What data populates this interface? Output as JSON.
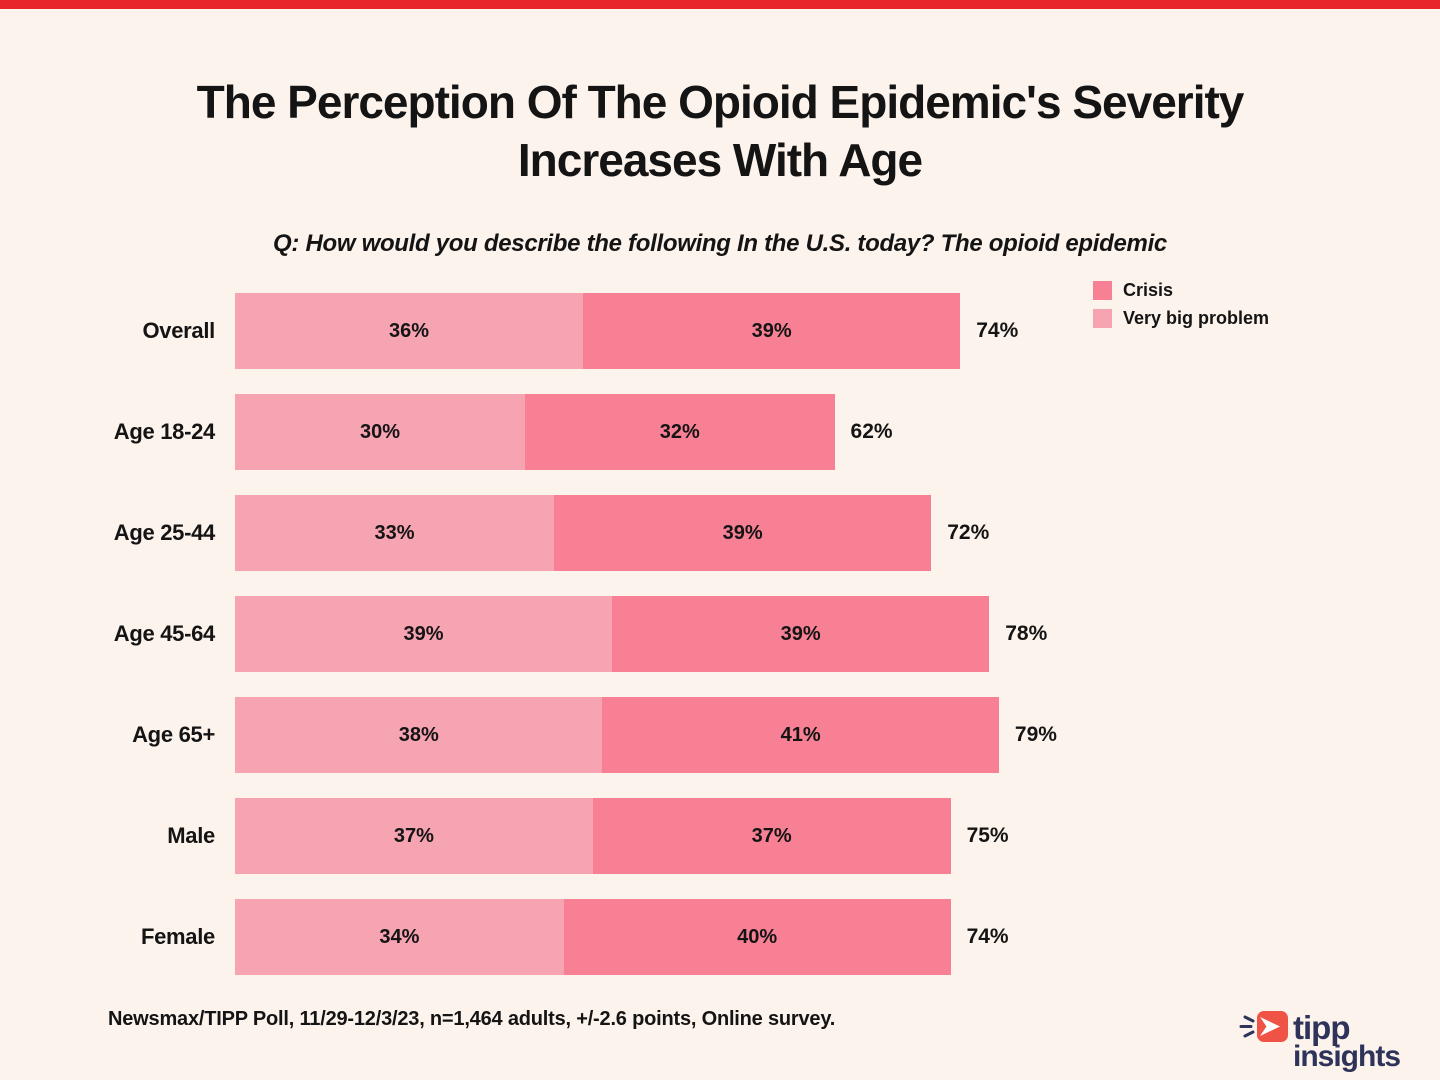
{
  "page": {
    "background": "#FDF3ED",
    "top_bar_color": "#E7252B",
    "text_color": "#141414"
  },
  "header": {
    "title": "The Perception Of The Opioid Epidemic's Severity Increases With Age",
    "subtitle": "Q: How would you describe the following In the U.S. today? The opioid epidemic"
  },
  "chart_data": {
    "type": "bar",
    "orientation": "horizontal",
    "stacked": true,
    "value_suffix": "%",
    "xlim": [
      0,
      100
    ],
    "grid": false,
    "categories": [
      "Overall",
      "Age 18-24",
      "Age 25-44",
      "Age 45-64",
      "Age 65+",
      "Male",
      "Female"
    ],
    "series": [
      {
        "name": "Very big problem",
        "color": "#F6A3B2",
        "values": [
          36,
          30,
          33,
          39,
          38,
          37,
          34
        ]
      },
      {
        "name": "Crisis",
        "color": "#F88094",
        "values": [
          39,
          32,
          39,
          39,
          41,
          37,
          40
        ]
      }
    ],
    "totals": [
      "74%",
      "62%",
      "72%",
      "78%",
      "79%",
      "75%",
      "74%"
    ],
    "legend": [
      {
        "label": "Crisis",
        "color": "#F88094"
      },
      {
        "label": "Very big problem",
        "color": "#F6A3B2"
      }
    ],
    "legend_position": "top-right"
  },
  "footer": {
    "source": "Newsmax/TIPP Poll, 11/29-12/3/23, n=1,464 adults, +/-2.6 points, Online survey.",
    "logo": {
      "word1": "tipp",
      "word2": "insights",
      "navy": "#2E3359",
      "red": "#EE5345"
    }
  }
}
